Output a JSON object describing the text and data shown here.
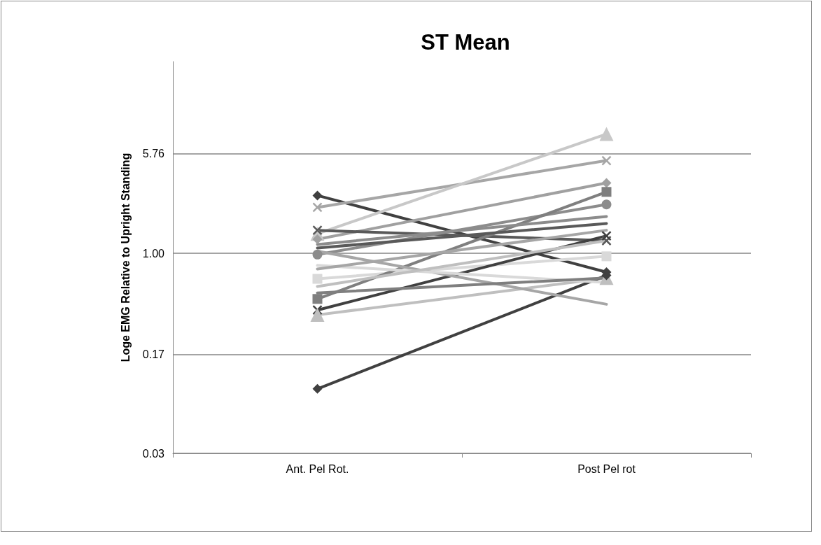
{
  "chart_data": {
    "type": "line",
    "title": "ST Mean",
    "ylabel": "Loge EMG Relative to Upright Standing",
    "categories": [
      "Ant. Pel Rot.",
      "Post Pel rot"
    ],
    "log": true,
    "ylim": [
      0.03,
      28.9
    ],
    "yticks": [
      0.03,
      0.17,
      {
        "value": 1,
        "label": "1.00"
      },
      5.76
    ],
    "grid": "y",
    "series": [
      {
        "color": "#404040",
        "marker": "diamond",
        "values": [
          2.76,
          0.72
        ]
      },
      {
        "color": "#a6a6a6",
        "marker": "cross",
        "values": [
          2.24,
          5.09
        ]
      },
      {
        "color": "#c8c8c8",
        "marker": "triangle",
        "values": [
          1.41,
          8.11
        ]
      },
      {
        "color": "#a0a0a0",
        "marker": "diamond",
        "values": [
          1.28,
          3.44
        ]
      },
      {
        "color": "#595959",
        "marker": "cross",
        "values": [
          1.5,
          1.25
        ]
      },
      {
        "color": "#8c8c8c",
        "marker": "circle",
        "values": [
          0.98,
          2.36
        ]
      },
      {
        "color": "#d9d9d9",
        "marker": "square",
        "values": [
          0.64,
          0.95
        ]
      },
      {
        "color": "#7f7f7f",
        "marker": "square",
        "values": [
          0.45,
          2.94
        ]
      },
      {
        "color": "#404040",
        "marker": "cross",
        "values": [
          0.37,
          1.36
        ]
      },
      {
        "color": "#bfbfbf",
        "marker": "triangle",
        "values": [
          0.34,
          0.65
        ]
      },
      {
        "color": "#404040",
        "marker": "diamond",
        "values": [
          0.093,
          0.68
        ]
      },
      {
        "color": "#a6a6a6",
        "marker": "none",
        "values": [
          1.04,
          0.41
        ]
      },
      {
        "color": "#d9d9d9",
        "marker": "none",
        "values": [
          0.81,
          0.6
        ]
      },
      {
        "color": "#7f7f7f",
        "marker": "none",
        "values": [
          0.5,
          0.65
        ]
      },
      {
        "color": "#8c8c8c",
        "marker": "none",
        "values": [
          1.17,
          1.91
        ]
      },
      {
        "color": "#595959",
        "marker": "none",
        "values": [
          1.1,
          1.69
        ]
      },
      {
        "color": "#a6a6a6",
        "marker": "none",
        "values": [
          0.76,
          1.5
        ]
      },
      {
        "color": "#bfbfbf",
        "marker": "none",
        "values": [
          0.56,
          1.25
        ]
      }
    ]
  }
}
